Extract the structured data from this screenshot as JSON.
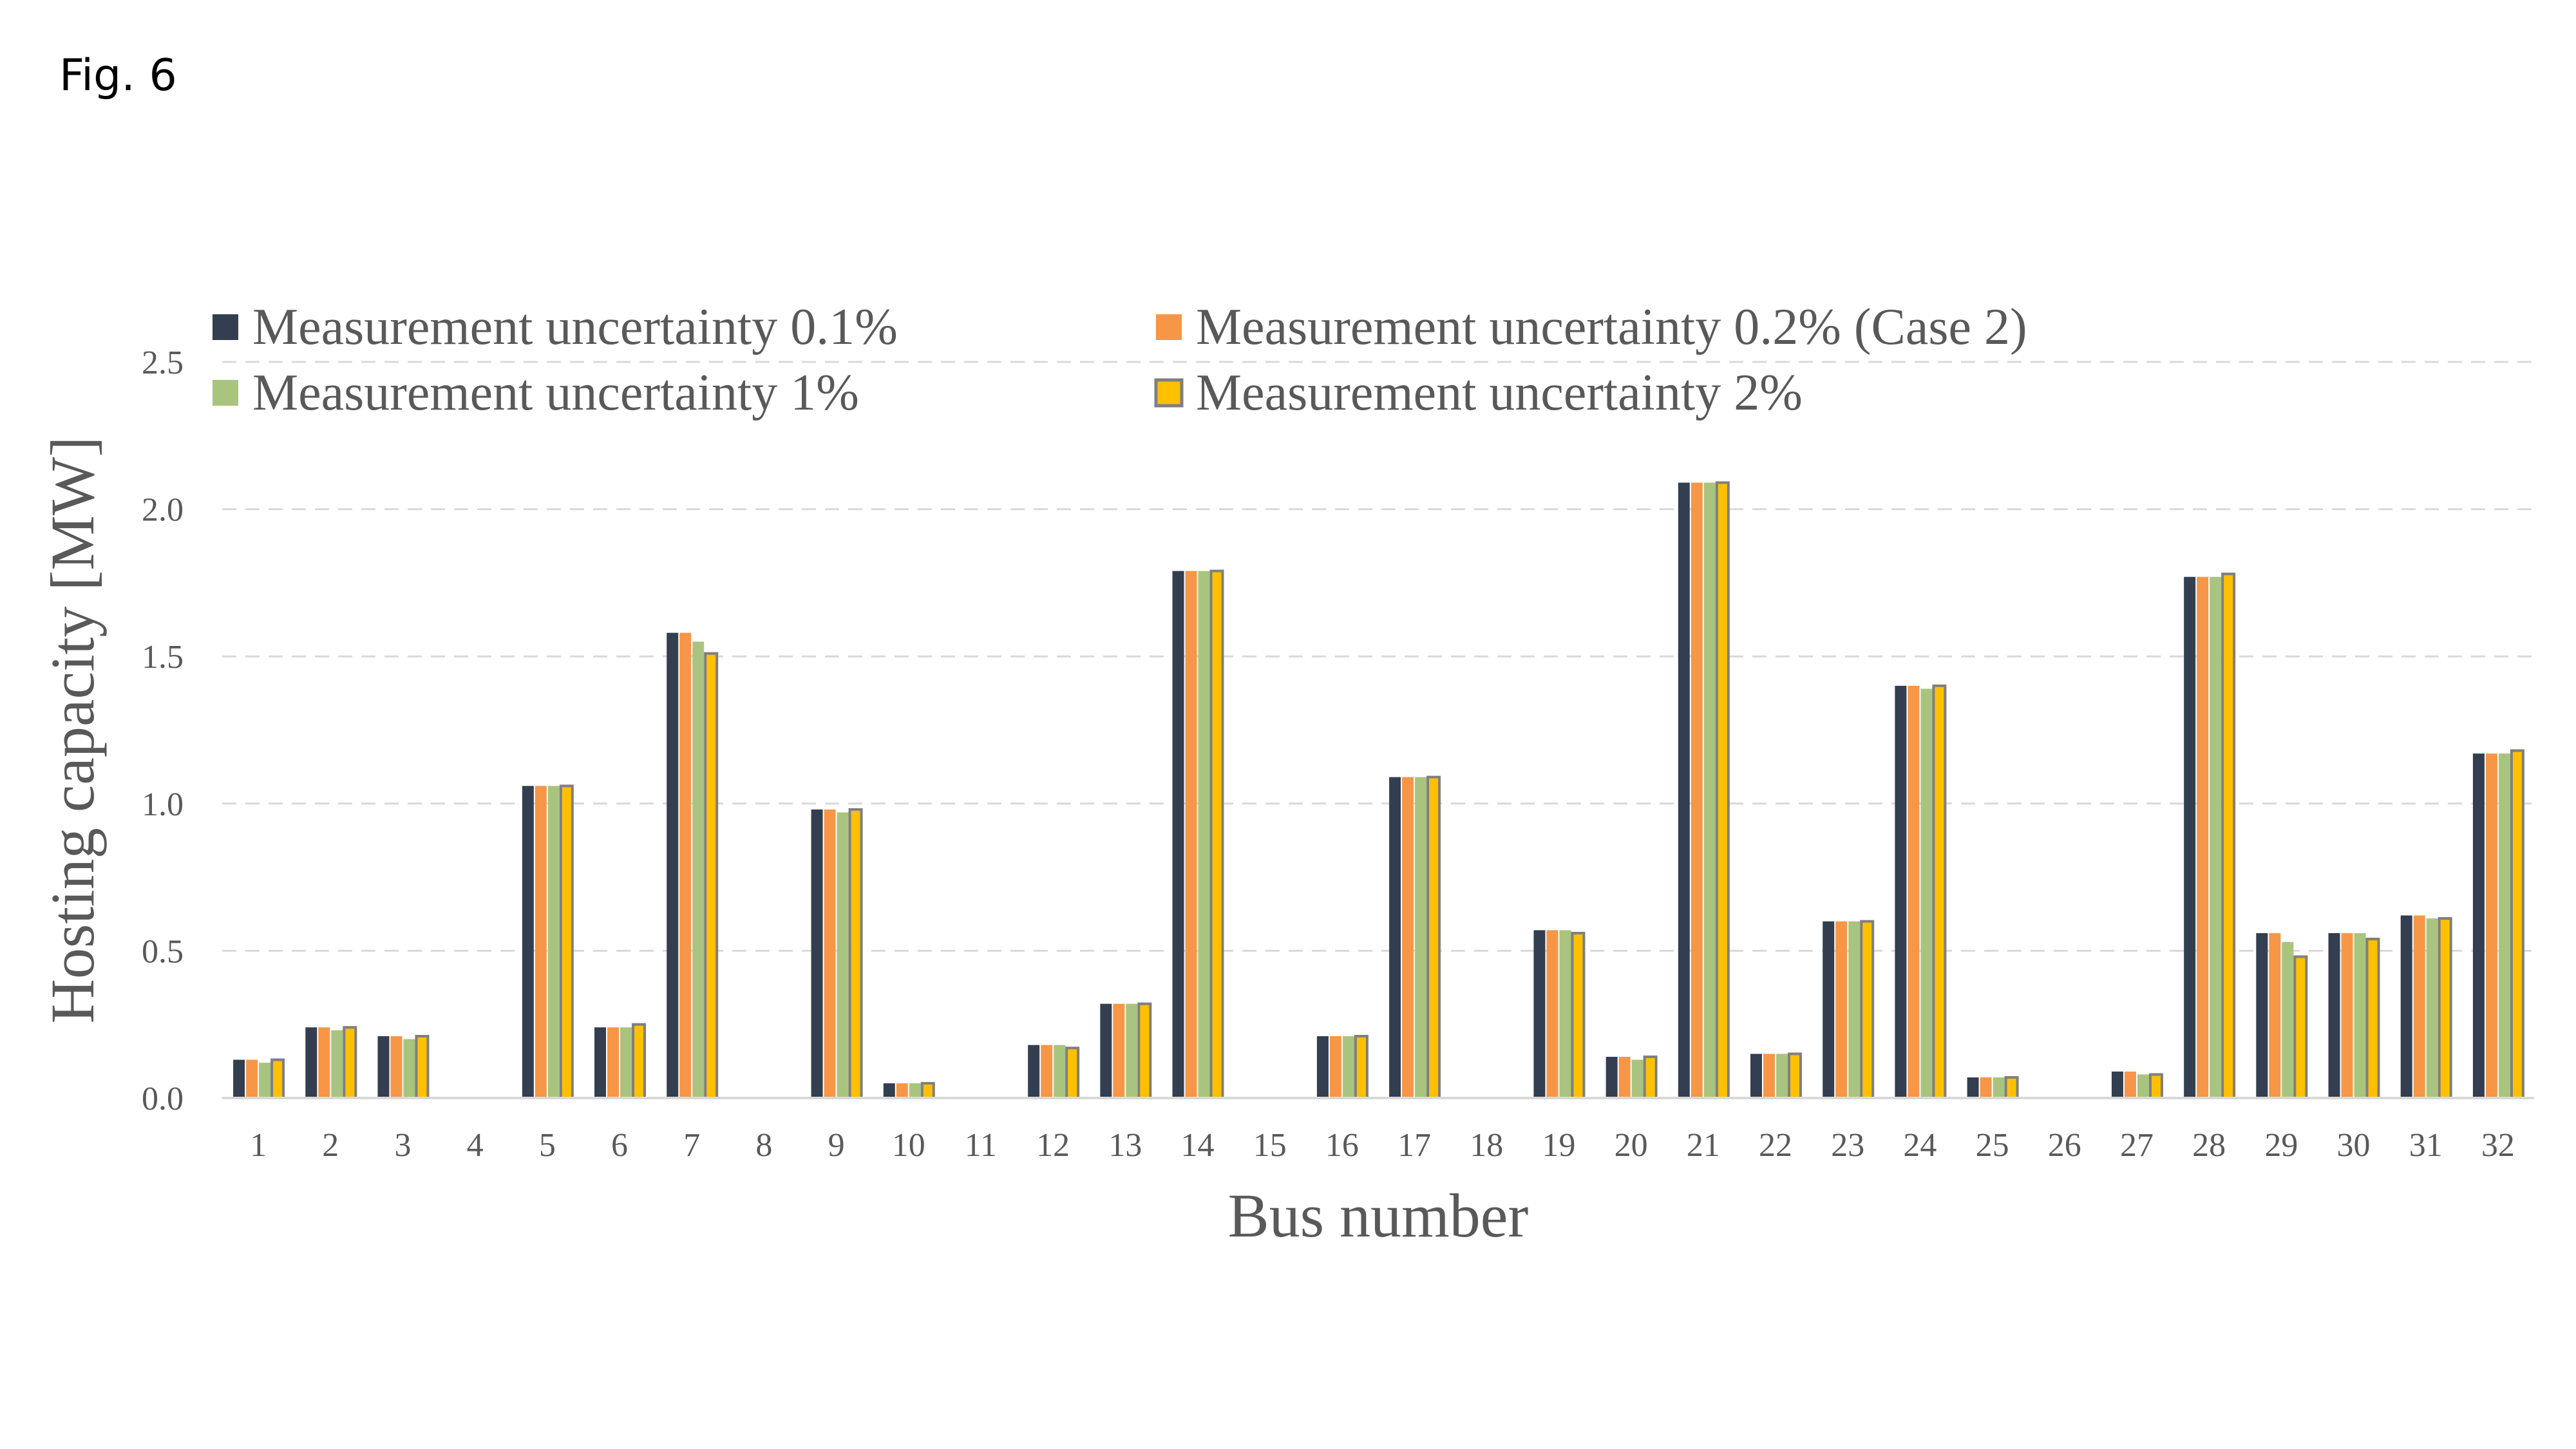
{
  "figure_label": "Fig. 6",
  "chart_data": {
    "type": "bar",
    "title": "",
    "xlabel": "Bus number",
    "ylabel": "Hosting capacity [MW]",
    "ylim": [
      0,
      2.5
    ],
    "yticks": [
      "0.0",
      "0.5",
      "1.0",
      "1.5",
      "2.0",
      "2.5"
    ],
    "grid": "horizontal dashed",
    "legend_position": "top",
    "categories": [
      "1",
      "2",
      "3",
      "4",
      "5",
      "6",
      "7",
      "8",
      "9",
      "10",
      "11",
      "12",
      "13",
      "14",
      "15",
      "16",
      "17",
      "18",
      "19",
      "20",
      "21",
      "22",
      "23",
      "24",
      "25",
      "26",
      "27",
      "28",
      "29",
      "30",
      "31",
      "32"
    ],
    "series": [
      {
        "name": "Measurement uncertainty 0.1%",
        "color": "#333F50",
        "values": [
          0.13,
          0.24,
          0.21,
          0,
          1.06,
          0.24,
          1.58,
          0,
          0.98,
          0.05,
          0,
          0.18,
          0.32,
          1.79,
          0,
          0.21,
          1.09,
          0,
          0.57,
          0.14,
          2.09,
          0.15,
          0.6,
          1.4,
          0.07,
          0,
          0.09,
          1.77,
          0.56,
          0.56,
          0.62,
          1.17
        ]
      },
      {
        "name": "Measurement uncertainty 0.2% (Case 2)",
        "color": "#F79646",
        "values": [
          0.13,
          0.24,
          0.21,
          0,
          1.06,
          0.24,
          1.58,
          0,
          0.98,
          0.05,
          0,
          0.18,
          0.32,
          1.79,
          0,
          0.21,
          1.09,
          0,
          0.57,
          0.14,
          2.09,
          0.15,
          0.6,
          1.4,
          0.07,
          0,
          0.09,
          1.77,
          0.56,
          0.56,
          0.62,
          1.17
        ]
      },
      {
        "name": "Measurement uncertainty 1%",
        "color": "#A9C47F",
        "values": [
          0.12,
          0.23,
          0.2,
          0,
          1.06,
          0.24,
          1.55,
          0,
          0.97,
          0.05,
          0,
          0.18,
          0.32,
          1.79,
          0,
          0.21,
          1.09,
          0,
          0.57,
          0.13,
          2.09,
          0.15,
          0.6,
          1.39,
          0.07,
          0,
          0.08,
          1.77,
          0.53,
          0.56,
          0.61,
          1.17
        ]
      },
      {
        "name": "Measurement uncertainty 2%",
        "color": "#FFC000",
        "edge": "#7F7F7F",
        "values": [
          0.13,
          0.24,
          0.21,
          0,
          1.06,
          0.25,
          1.51,
          0,
          0.98,
          0.05,
          0,
          0.17,
          0.32,
          1.79,
          0,
          0.21,
          1.09,
          0,
          0.56,
          0.14,
          2.09,
          0.15,
          0.6,
          1.4,
          0.07,
          0,
          0.08,
          1.78,
          0.48,
          0.54,
          0.61,
          1.18
        ]
      }
    ]
  }
}
